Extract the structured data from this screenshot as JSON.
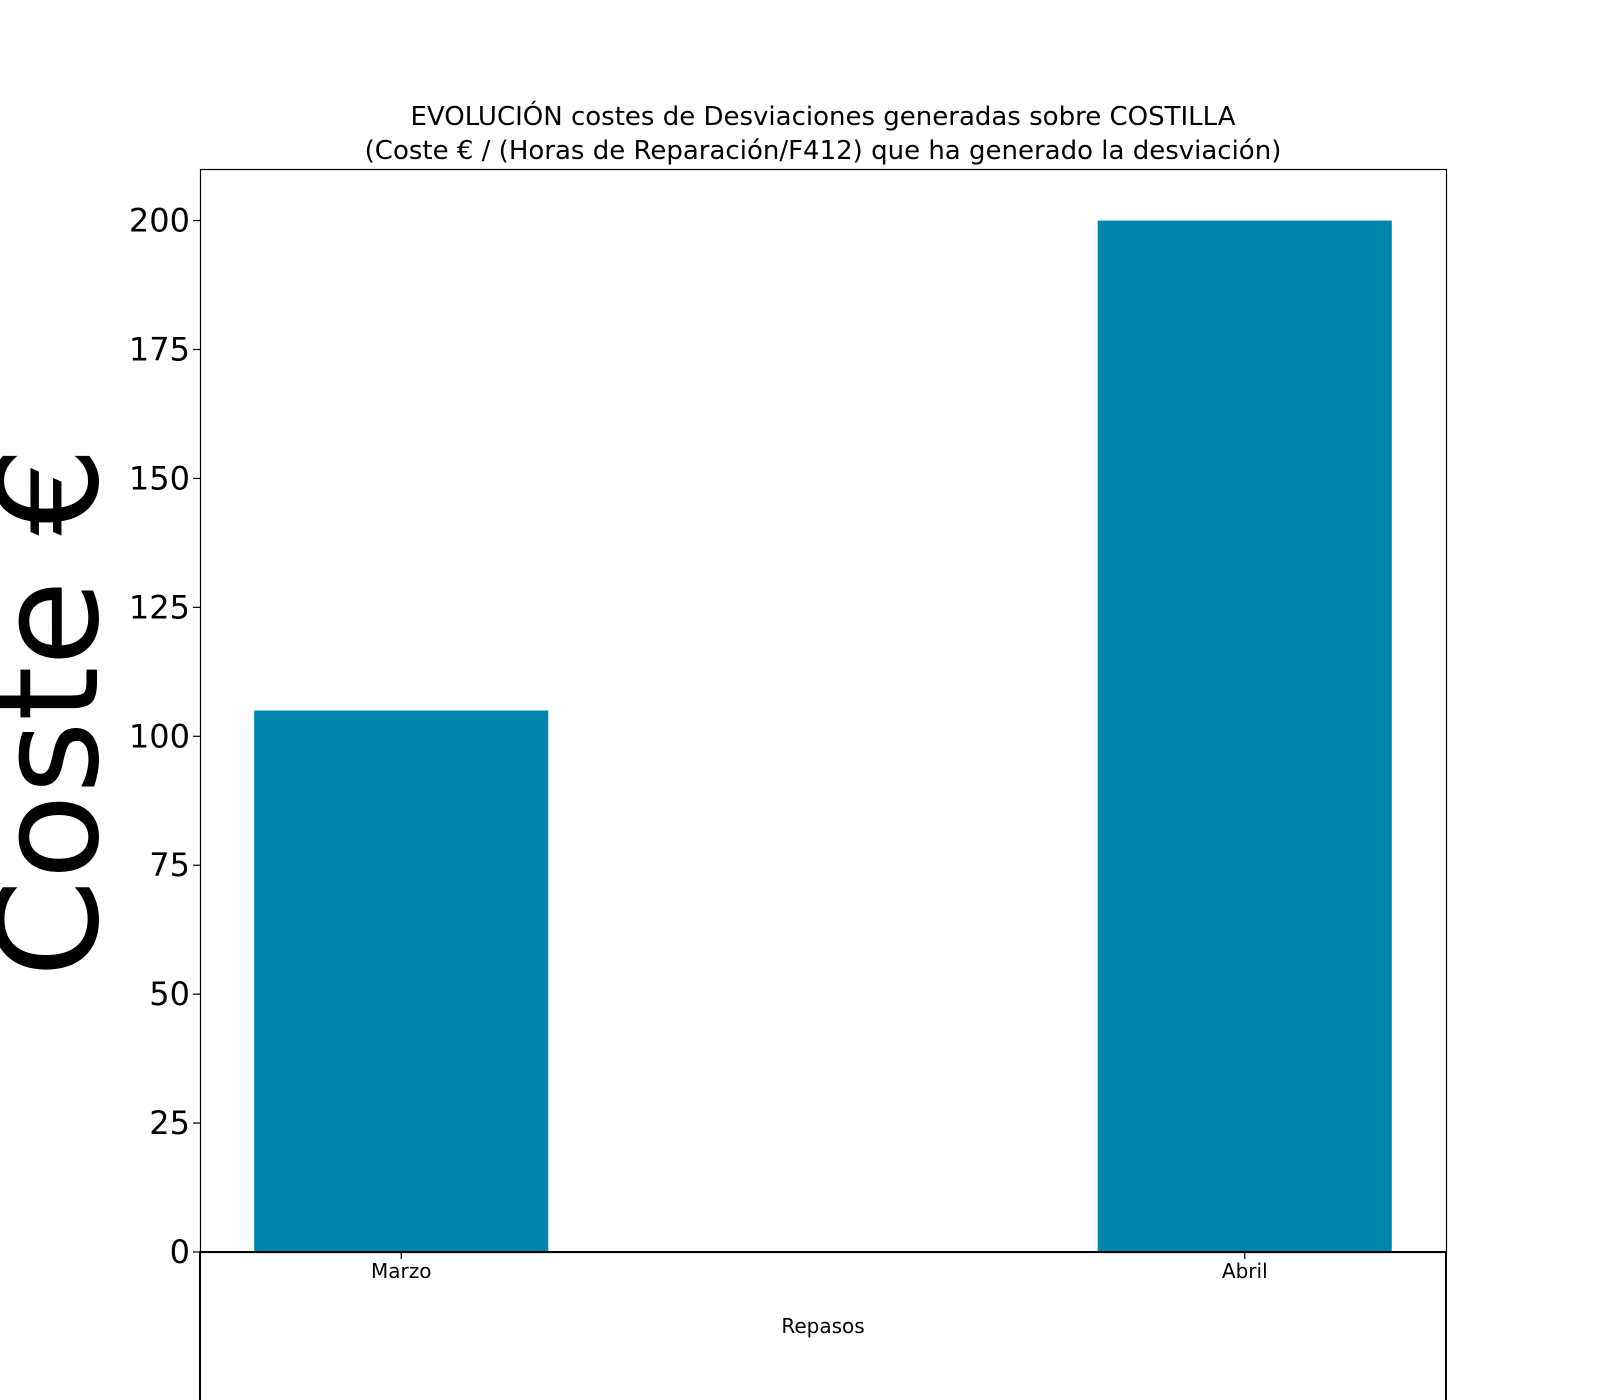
{
  "chart_data": {
    "type": "bar",
    "title": "EVOLUCIÓN costes de Desviaciones  generadas  sobre COSTILLA",
    "subtitle": "(Coste € / (Horas de Reparación/F412) que ha generado la desviación)",
    "xlabel": "Repasos",
    "ylabel": "Coste €",
    "categories": [
      "Marzo",
      "Abril"
    ],
    "values": [
      105,
      200
    ],
    "ylim": [
      0,
      210
    ],
    "yticks": [
      0,
      25,
      50,
      75,
      100,
      125,
      150,
      175,
      200
    ],
    "bar_color": "#0086ad",
    "grid": false
  }
}
